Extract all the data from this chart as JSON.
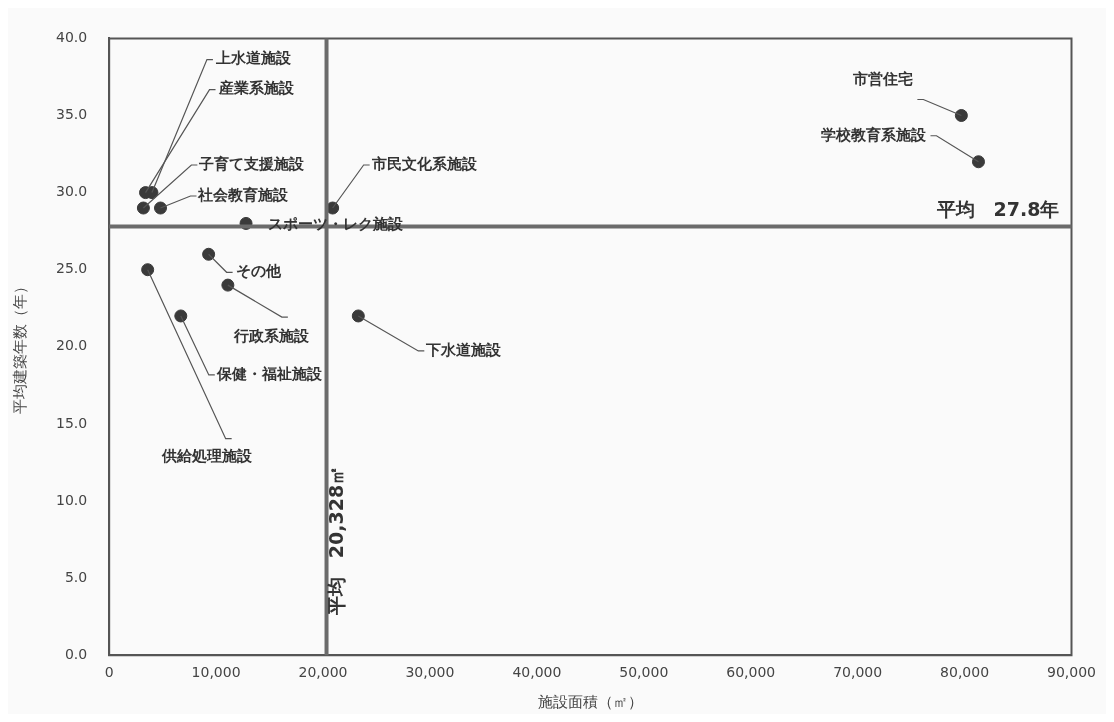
{
  "chart_data": {
    "type": "scatter",
    "xlabel": "施設面積（㎡）",
    "ylabel": "平均建築年数（年）",
    "series": [
      {
        "color": "#3a3a3a",
        "x": [
          4000,
          3400,
          3200,
          4800,
          20900,
          12800,
          9300,
          3600,
          11100,
          6700,
          23300,
          79700,
          81300
        ],
        "values": [
          30,
          30,
          29,
          29,
          29,
          28,
          26,
          25,
          24,
          22,
          22,
          35,
          32
        ]
      }
    ],
    "annotations": [
      {
        "text": "上水道施設",
        "x": 4000,
        "y": 30
      },
      {
        "text": "産業系施設",
        "x": 3400,
        "y": 30
      },
      {
        "text": "子育て支援施設",
        "x": 3200,
        "y": 29
      },
      {
        "text": "社会教育施設",
        "x": 4800,
        "y": 29
      },
      {
        "text": "市民文化系施設",
        "x": 20900,
        "y": 29
      },
      {
        "text": "スポーツ・レク施設",
        "x": 12800,
        "y": 28
      },
      {
        "text": "その他",
        "x": 9300,
        "y": 26
      },
      {
        "text": "供給処理施設",
        "x": 3600,
        "y": 25
      },
      {
        "text": "行政系施設",
        "x": 11100,
        "y": 24
      },
      {
        "text": "保健・福祉施設",
        "x": 6700,
        "y": 22
      },
      {
        "text": "下水道施設",
        "x": 23300,
        "y": 22
      },
      {
        "text": "市営住宅",
        "x": 79700,
        "y": 35
      },
      {
        "text": "学校教育系施設",
        "x": 81300,
        "y": 32
      }
    ],
    "ref_lines": [
      {
        "axis": "y",
        "value": 27.8,
        "label": "平均　27.8年",
        "color": "#6b6b6b"
      },
      {
        "axis": "x",
        "value": 20328,
        "label": "平均　20,328㎡",
        "color": "#6b6b6b"
      }
    ],
    "xlim": [
      0,
      90000
    ],
    "xticks": [
      0,
      {
        "value": 10000,
        "label": "10,000"
      },
      {
        "value": 20000,
        "label": "20,000"
      },
      {
        "value": 30000,
        "label": "30,000"
      },
      {
        "value": 40000,
        "label": "40,000"
      },
      {
        "value": 50000,
        "label": "50,000"
      },
      {
        "value": 60000,
        "label": "60,000"
      },
      {
        "value": 70000,
        "label": "70,000"
      },
      {
        "value": 80000,
        "label": "80,000"
      },
      {
        "value": 90000,
        "label": "90,000"
      }
    ],
    "ylim": [
      0,
      40
    ],
    "yticks": [
      {
        "value": 0,
        "label": "0.0"
      },
      {
        "value": 5,
        "label": "5.0"
      },
      {
        "value": 10,
        "label": "10.0"
      },
      {
        "value": 15,
        "label": "15.0"
      },
      {
        "value": 20,
        "label": "20.0"
      },
      {
        "value": 25,
        "label": "25.0"
      },
      {
        "value": 30,
        "label": "30.0"
      },
      {
        "value": 35,
        "label": "35.0"
      },
      {
        "value": 40,
        "label": "40.0"
      }
    ],
    "grid": false,
    "legend": false,
    "marker": "circle"
  }
}
